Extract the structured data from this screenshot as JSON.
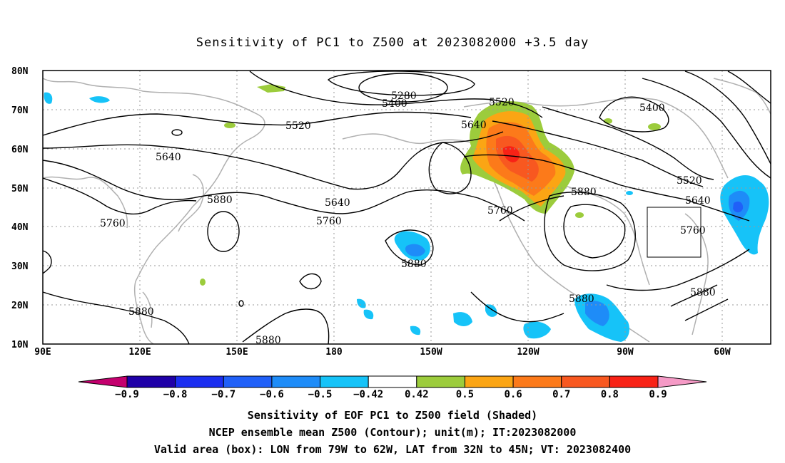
{
  "title": "Sensitivity of PC1 to Z500 at 2023082000 +3.5 day",
  "map": {
    "lat_labels": [
      "80N",
      "70N",
      "60N",
      "50N",
      "40N",
      "30N",
      "20N",
      "10N"
    ],
    "lon_labels": [
      "90E",
      "120E",
      "150E",
      "180",
      "150W",
      "120W",
      "90W",
      "60W"
    ],
    "contour_labels": [
      "5280",
      "5400",
      "5520",
      "5400",
      "5640",
      "5520",
      "5640",
      "5760",
      "5880",
      "5640",
      "5760",
      "5880",
      "5520",
      "5640",
      "5760",
      "5880",
      "5760",
      "5880",
      "5880",
      "5880",
      "5880"
    ],
    "box": {
      "lon_from": "79W",
      "lon_to": "62W",
      "lat_from": "32N",
      "lat_to": "45N"
    }
  },
  "colorbar": {
    "labels": [
      "-0.9",
      "-0.8",
      "-0.7",
      "-0.6",
      "-0.5",
      "-0.42",
      "0.42",
      "0.5",
      "0.6",
      "0.7",
      "0.8",
      "0.9"
    ],
    "colors": [
      "#1f00a8",
      "#1b2ef0",
      "#2060f8",
      "#1e8cf8",
      "#16c3f8",
      "#ffffff",
      "#9ccc3c",
      "#fba514",
      "#fc7a1a",
      "#f85820",
      "#f82216"
    ],
    "low_arrow_color": "#c4006e",
    "high_arrow_color": "#f59ac6"
  },
  "caption": {
    "line1": "Sensitivity of EOF PC1 to Z500 field (Shaded)",
    "line2": "NCEP ensemble mean Z500 (Contour); unit(m); IT:2023082000",
    "line3": "Valid area (box): LON from 79W to 62W, LAT from 32N to 45N; VT: 2023082400"
  }
}
